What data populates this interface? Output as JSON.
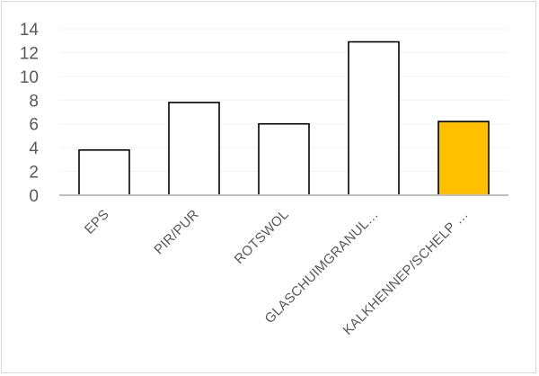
{
  "chart_data": {
    "type": "bar",
    "categories": [
      "EPS",
      "PIR/PUR",
      "ROTSWOL",
      "GLASCHUIMGRANUL…",
      "KALKHENNEP/SCHELP …"
    ],
    "values": [
      3.8,
      7.8,
      6.0,
      12.9,
      6.2
    ],
    "ylim": [
      0,
      14
    ],
    "yticks": [
      0,
      2,
      4,
      6,
      8,
      10,
      12,
      14
    ],
    "grid": true,
    "legend": "none",
    "title": "",
    "xlabel": "",
    "ylabel": "",
    "colors": {
      "bar_fill": "#ffffff",
      "bar_stroke": "#000000",
      "highlight_fill": "#ffc000",
      "highlight_index": 4,
      "axis": "#bfbfbf",
      "grid": "#f2f2f2",
      "text": "#595959"
    }
  }
}
